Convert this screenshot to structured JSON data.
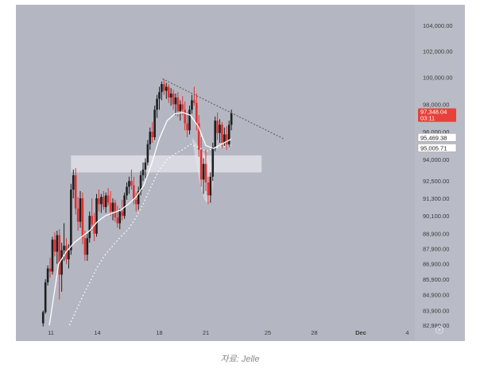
{
  "caption": "자료: Jelle",
  "colors": {
    "background": "#b4b7c2",
    "up": "#1f1f1f",
    "down": "#e03232",
    "ma_fast": "#ffffff",
    "ma_slow": "#ffffff",
    "zone": "#dfe0e6",
    "trendline": "#555555",
    "price_badge": "#e8413b"
  },
  "chart_data": {
    "type": "candlestick",
    "title": "",
    "y_scale": "log",
    "ylim": [
      82980,
      104000
    ],
    "y_ticks": [
      "104,000.00",
      "102,000.00",
      "100,000.00",
      "98,000.00",
      "96,000.00",
      "94,000.00",
      "92,500.00",
      "91,300.00",
      "90,100.00",
      "88,900.00",
      "87,900.00",
      "86,900.00",
      "85,900.00",
      "84,900.00",
      "83,900.00",
      "82,980.00"
    ],
    "x_ticks": [
      {
        "day": 11,
        "label": "11"
      },
      {
        "day": 14,
        "label": "14"
      },
      {
        "day": 18,
        "label": "18"
      },
      {
        "day": 21,
        "label": "21"
      },
      {
        "day": 25,
        "label": "25"
      },
      {
        "day": 28,
        "label": "28"
      },
      {
        "day": 31,
        "label": "Dec"
      },
      {
        "day": 34,
        "label": "4"
      }
    ],
    "price_labels": [
      {
        "label": "97,348.04",
        "sub": "03:11",
        "style": "current"
      },
      {
        "label": "95,469.38",
        "style": "ma"
      },
      {
        "label": "95,005.71",
        "style": "ma"
      }
    ],
    "candles": [
      [
        10.5,
        83100,
        83900,
        82900,
        83800
      ],
      [
        10.65,
        83800,
        85900,
        83700,
        85700
      ],
      [
        10.8,
        85700,
        86800,
        85500,
        86600
      ],
      [
        10.95,
        86600,
        87300,
        86000,
        86400
      ],
      [
        11.1,
        86400,
        88700,
        86200,
        88500
      ],
      [
        11.25,
        88500,
        89000,
        87400,
        87700
      ],
      [
        11.4,
        87700,
        89100,
        86900,
        88800
      ],
      [
        11.55,
        88800,
        89200,
        84600,
        86200
      ],
      [
        11.7,
        86200,
        88300,
        85100,
        87800
      ],
      [
        11.85,
        87800,
        89600,
        87100,
        88100
      ],
      [
        12.0,
        88100,
        88600,
        86900,
        87200
      ],
      [
        12.15,
        87200,
        88200,
        86600,
        87800
      ],
      [
        12.3,
        87800,
        92300,
        87500,
        91900
      ],
      [
        12.45,
        91900,
        93300,
        91300,
        92900
      ],
      [
        12.6,
        92900,
        93400,
        90200,
        90600
      ],
      [
        12.75,
        90600,
        91400,
        89100,
        89700
      ],
      [
        12.9,
        89700,
        91800,
        89300,
        91300
      ],
      [
        13.05,
        91300,
        91700,
        88200,
        88600
      ],
      [
        13.2,
        88600,
        89100,
        87100,
        87500
      ],
      [
        13.35,
        87500,
        88900,
        87100,
        88600
      ],
      [
        13.5,
        88600,
        90400,
        88300,
        90100
      ],
      [
        13.65,
        90100,
        91300,
        89100,
        89500
      ],
      [
        13.8,
        89500,
        90300,
        88400,
        88900
      ],
      [
        13.95,
        88900,
        91600,
        88700,
        91300
      ],
      [
        14.1,
        91300,
        91900,
        90400,
        90900
      ],
      [
        14.25,
        90900,
        91600,
        90300,
        91400
      ],
      [
        14.4,
        91400,
        91800,
        90500,
        90700
      ],
      [
        14.55,
        90700,
        91700,
        90300,
        91500
      ],
      [
        14.7,
        91500,
        92000,
        90800,
        91000
      ],
      [
        14.85,
        91000,
        91800,
        90100,
        90400
      ],
      [
        15.0,
        90400,
        91300,
        89800,
        91000
      ],
      [
        15.15,
        91000,
        91200,
        89700,
        90000
      ],
      [
        15.3,
        90000,
        90800,
        89300,
        89600
      ],
      [
        15.45,
        89600,
        90600,
        89200,
        90400
      ],
      [
        15.6,
        90400,
        91200,
        89800,
        90100
      ],
      [
        15.75,
        90100,
        91700,
        89900,
        91500
      ],
      [
        15.9,
        91500,
        92400,
        91200,
        92100
      ],
      [
        16.05,
        92100,
        92800,
        91600,
        92500
      ],
      [
        16.2,
        92500,
        93300,
        91900,
        92200
      ],
      [
        16.35,
        92200,
        92800,
        90900,
        91200
      ],
      [
        16.5,
        91200,
        91700,
        90400,
        90900
      ],
      [
        16.65,
        90900,
        92100,
        90500,
        91800
      ],
      [
        16.8,
        91800,
        93200,
        91500,
        92900
      ],
      [
        16.95,
        92900,
        93800,
        92500,
        93300
      ],
      [
        17.1,
        93300,
        94100,
        92700,
        93800
      ],
      [
        17.25,
        93800,
        95400,
        93600,
        95100
      ],
      [
        17.4,
        95100,
        96300,
        94700,
        96000
      ],
      [
        17.55,
        96000,
        96700,
        95200,
        95600
      ],
      [
        17.7,
        95600,
        97900,
        95400,
        97600
      ],
      [
        17.85,
        97600,
        98700,
        97000,
        98400
      ],
      [
        18.0,
        98400,
        99300,
        97600,
        98900
      ],
      [
        18.15,
        98900,
        99700,
        98300,
        99500
      ],
      [
        18.3,
        99500,
        99900,
        98700,
        99000
      ],
      [
        18.45,
        99000,
        99600,
        98400,
        99300
      ],
      [
        18.6,
        99300,
        99500,
        98100,
        98500
      ],
      [
        18.75,
        98500,
        99200,
        97900,
        98800
      ],
      [
        18.9,
        98800,
        99100,
        97600,
        98000
      ],
      [
        19.05,
        98000,
        98800,
        97200,
        98500
      ],
      [
        19.2,
        98500,
        98900,
        97100,
        97500
      ],
      [
        19.35,
        97500,
        98300,
        96800,
        98000
      ],
      [
        19.5,
        98000,
        98600,
        97200,
        97600
      ],
      [
        19.65,
        97600,
        98200,
        96100,
        96600
      ],
      [
        19.8,
        96600,
        97400,
        95600,
        96100
      ],
      [
        19.95,
        96100,
        97900,
        95800,
        97600
      ],
      [
        20.1,
        97600,
        98700,
        97300,
        98300
      ],
      [
        20.25,
        98300,
        99300,
        97900,
        98100
      ],
      [
        20.4,
        98100,
        98800,
        96100,
        96600
      ],
      [
        20.55,
        96600,
        97200,
        94200,
        94700
      ],
      [
        20.7,
        94700,
        95600,
        92100,
        92600
      ],
      [
        20.85,
        92600,
        94100,
        91600,
        93700
      ],
      [
        21.0,
        93700,
        94700,
        91800,
        92400
      ],
      [
        21.15,
        92400,
        92800,
        90900,
        91500
      ],
      [
        21.3,
        91500,
        93100,
        91000,
        92800
      ],
      [
        21.45,
        92800,
        95200,
        92500,
        94900
      ],
      [
        21.6,
        94900,
        97100,
        94600,
        96800
      ],
      [
        21.75,
        96800,
        97400,
        95400,
        95900
      ],
      [
        21.9,
        95900,
        96900,
        95200,
        96500
      ],
      [
        22.05,
        96500,
        96700,
        94800,
        95200
      ],
      [
        22.2,
        95200,
        96300,
        94900,
        95800
      ],
      [
        22.35,
        95800,
        96400,
        94700,
        95100
      ],
      [
        22.5,
        95100,
        96800,
        94900,
        96500
      ],
      [
        22.65,
        96500,
        97600,
        96100,
        97350
      ]
    ],
    "ma_fast": [
      [
        10.9,
        82980
      ],
      [
        11.5,
        86900
      ],
      [
        12.0,
        87700
      ],
      [
        12.5,
        88300
      ],
      [
        13.0,
        88700
      ],
      [
        13.5,
        89100
      ],
      [
        14.0,
        89700
      ],
      [
        14.5,
        90100
      ],
      [
        15.0,
        90300
      ],
      [
        15.5,
        90500
      ],
      [
        16.0,
        90900
      ],
      [
        16.5,
        91400
      ],
      [
        17.0,
        92200
      ],
      [
        17.5,
        93700
      ],
      [
        18.0,
        95500
      ],
      [
        18.5,
        96800
      ],
      [
        19.0,
        97300
      ],
      [
        19.5,
        97400
      ],
      [
        20.0,
        97200
      ],
      [
        20.5,
        96400
      ],
      [
        21.0,
        95000
      ],
      [
        21.5,
        94800
      ],
      [
        22.0,
        95100
      ],
      [
        22.65,
        95470
      ]
    ],
    "ma_slow": [
      [
        12.2,
        82980
      ],
      [
        13.0,
        84700
      ],
      [
        13.5,
        85700
      ],
      [
        14.0,
        86700
      ],
      [
        14.5,
        87500
      ],
      [
        15.0,
        88100
      ],
      [
        15.5,
        88700
      ],
      [
        16.0,
        89200
      ],
      [
        16.5,
        90000
      ],
      [
        17.0,
        91000
      ],
      [
        17.5,
        92200
      ],
      [
        18.0,
        93300
      ],
      [
        18.5,
        94000
      ],
      [
        19.0,
        94400
      ],
      [
        19.5,
        94700
      ],
      [
        20.0,
        95100
      ],
      [
        20.5,
        94900
      ],
      [
        21.0,
        94600
      ],
      [
        21.5,
        94800
      ],
      [
        22.0,
        94900
      ],
      [
        22.65,
        95010
      ]
    ],
    "zone": {
      "day_from": 12.3,
      "day_to": 24.6,
      "price_low": 93100,
      "price_high": 94300
    },
    "trendline": [
      [
        18.2,
        99900
      ],
      [
        26.0,
        95500
      ]
    ],
    "rounded_bottom": [
      [
        20.1,
        95600
      ],
      [
        20.3,
        94200
      ],
      [
        20.6,
        92400
      ],
      [
        20.9,
        91200
      ],
      [
        21.15,
        90900
      ],
      [
        21.4,
        91700
      ],
      [
        21.6,
        93400
      ]
    ]
  }
}
